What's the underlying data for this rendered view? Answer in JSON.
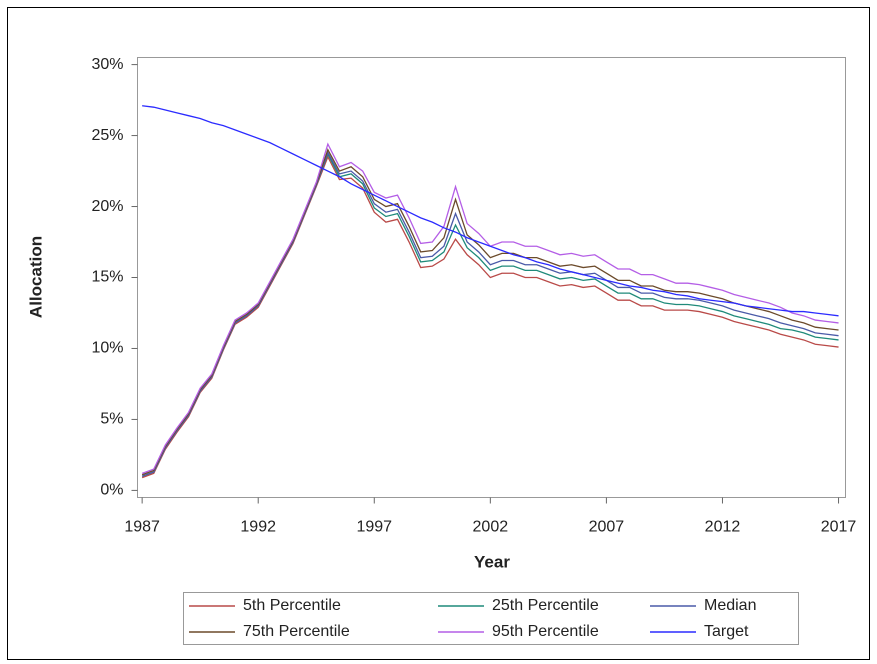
{
  "chart_data": {
    "type": "line",
    "x_label": "Year",
    "y_label": "Allocation",
    "x": [
      1987,
      1987.5,
      1988,
      1988.5,
      1989,
      1989.5,
      1990,
      1990.5,
      1991,
      1991.5,
      1992,
      1992.5,
      1993,
      1993.5,
      1994,
      1994.5,
      1995,
      1995.5,
      1996,
      1996.5,
      1997,
      1997.5,
      1998,
      1998.5,
      1999,
      1999.5,
      2000,
      2000.5,
      2001,
      2001.5,
      2002,
      2002.5,
      2003,
      2003.5,
      2004,
      2004.5,
      2005,
      2005.5,
      2006,
      2006.5,
      2007,
      2007.5,
      2008,
      2008.5,
      2009,
      2009.5,
      2010,
      2010.5,
      2011,
      2011.5,
      2012,
      2012.5,
      2013,
      2013.5,
      2014,
      2014.5,
      2015,
      2015.5,
      2016,
      2016.5,
      2017
    ],
    "series": [
      {
        "name": "5th Percentile",
        "color": "#b94a48",
        "values": [
          0.9,
          1.2,
          2.9,
          4.1,
          5.2,
          6.9,
          7.9,
          9.9,
          11.7,
          12.2,
          12.9,
          14.4,
          15.9,
          17.4,
          19.4,
          21.4,
          23.5,
          21.9,
          22.0,
          21.3,
          19.6,
          18.9,
          19.1,
          17.5,
          15.7,
          15.8,
          16.3,
          17.7,
          16.6,
          15.9,
          15.0,
          15.3,
          15.3,
          15.0,
          15.0,
          14.7,
          14.4,
          14.5,
          14.3,
          14.4,
          13.9,
          13.4,
          13.4,
          13.0,
          13.0,
          12.7,
          12.7,
          12.7,
          12.6,
          12.4,
          12.2,
          11.9,
          11.7,
          11.5,
          11.3,
          11.0,
          10.8,
          10.6,
          10.3,
          10.2,
          10.1
        ]
      },
      {
        "name": "25th Percentile",
        "color": "#1f8a7a",
        "values": [
          1.0,
          1.3,
          3.0,
          4.2,
          5.3,
          7.0,
          8.0,
          10.0,
          11.8,
          12.3,
          13.0,
          14.5,
          16.0,
          17.5,
          19.5,
          21.5,
          23.7,
          22.1,
          22.3,
          21.6,
          19.9,
          19.3,
          19.5,
          17.9,
          16.1,
          16.2,
          16.8,
          18.7,
          17.1,
          16.4,
          15.5,
          15.8,
          15.8,
          15.5,
          15.5,
          15.2,
          14.9,
          15.0,
          14.8,
          14.9,
          14.4,
          13.9,
          13.9,
          13.5,
          13.5,
          13.2,
          13.1,
          13.1,
          13.0,
          12.8,
          12.6,
          12.3,
          12.1,
          11.9,
          11.7,
          11.4,
          11.3,
          11.1,
          10.8,
          10.7,
          10.6
        ]
      },
      {
        "name": "Median",
        "color": "#4a5aa8",
        "values": [
          1.0,
          1.3,
          3.0,
          4.2,
          5.3,
          7.0,
          8.0,
          10.0,
          11.8,
          12.3,
          13.0,
          14.5,
          16.0,
          17.5,
          19.5,
          21.5,
          23.8,
          22.3,
          22.5,
          21.8,
          20.2,
          19.6,
          19.8,
          18.2,
          16.4,
          16.5,
          17.2,
          19.5,
          17.5,
          16.8,
          15.9,
          16.2,
          16.2,
          15.9,
          15.9,
          15.6,
          15.3,
          15.4,
          15.2,
          15.3,
          14.8,
          14.3,
          14.3,
          13.9,
          13.9,
          13.6,
          13.5,
          13.5,
          13.4,
          13.2,
          13.0,
          12.7,
          12.5,
          12.3,
          12.1,
          11.8,
          11.6,
          11.4,
          11.1,
          11.0,
          10.9
        ]
      },
      {
        "name": "75th Percentile",
        "color": "#6b4a2a",
        "values": [
          1.1,
          1.4,
          3.1,
          4.3,
          5.4,
          7.1,
          8.1,
          10.1,
          11.9,
          12.4,
          13.1,
          14.6,
          16.1,
          17.6,
          19.6,
          21.6,
          24.0,
          22.5,
          22.8,
          22.1,
          20.5,
          20.0,
          20.2,
          18.6,
          16.8,
          16.9,
          17.8,
          20.5,
          18.0,
          17.3,
          16.4,
          16.7,
          16.7,
          16.4,
          16.4,
          16.1,
          15.8,
          15.9,
          15.7,
          15.8,
          15.3,
          14.8,
          14.8,
          14.4,
          14.4,
          14.1,
          14.0,
          14.0,
          13.9,
          13.7,
          13.5,
          13.2,
          13.0,
          12.8,
          12.6,
          12.3,
          12.0,
          11.8,
          11.5,
          11.4,
          11.3
        ]
      },
      {
        "name": "95th Percentile",
        "color": "#b45ee6",
        "values": [
          1.2,
          1.5,
          3.2,
          4.4,
          5.5,
          7.2,
          8.2,
          10.2,
          12.0,
          12.5,
          13.2,
          14.7,
          16.2,
          17.7,
          19.7,
          21.7,
          24.4,
          22.8,
          23.1,
          22.5,
          21.0,
          20.6,
          20.8,
          19.2,
          17.4,
          17.5,
          18.6,
          21.4,
          18.8,
          18.1,
          17.2,
          17.5,
          17.5,
          17.2,
          17.2,
          16.9,
          16.6,
          16.7,
          16.5,
          16.6,
          16.1,
          15.6,
          15.6,
          15.2,
          15.2,
          14.9,
          14.6,
          14.6,
          14.5,
          14.3,
          14.1,
          13.8,
          13.6,
          13.4,
          13.2,
          12.9,
          12.5,
          12.3,
          12.0,
          11.9,
          11.8
        ]
      },
      {
        "name": "Target",
        "color": "#2b2bff",
        "values": [
          27.1,
          27.0,
          26.8,
          26.6,
          26.4,
          26.2,
          25.9,
          25.7,
          25.4,
          25.1,
          24.8,
          24.5,
          24.1,
          23.7,
          23.3,
          22.9,
          22.5,
          22.1,
          21.6,
          21.2,
          20.8,
          20.4,
          20.0,
          19.6,
          19.2,
          18.9,
          18.5,
          18.2,
          17.8,
          17.5,
          17.2,
          16.9,
          16.6,
          16.4,
          16.1,
          15.9,
          15.6,
          15.4,
          15.2,
          15.0,
          14.8,
          14.6,
          14.4,
          14.3,
          14.1,
          14.0,
          13.8,
          13.7,
          13.5,
          13.4,
          13.3,
          13.2,
          13.0,
          12.9,
          12.8,
          12.7,
          12.6,
          12.6,
          12.5,
          12.4,
          12.3
        ]
      }
    ],
    "xlim": [
      1986.8,
      2017.3
    ],
    "xticks": [
      1987,
      1992,
      1997,
      2002,
      2007,
      2012,
      2017
    ],
    "ylim": [
      -0.5,
      30.5
    ],
    "yticks": [
      {
        "value": 0,
        "label": "0%"
      },
      {
        "value": 5,
        "label": "5%"
      },
      {
        "value": 10,
        "label": "10%"
      },
      {
        "value": 15,
        "label": "15%"
      },
      {
        "value": 20,
        "label": "20%"
      },
      {
        "value": 25,
        "label": "25%"
      },
      {
        "value": 30,
        "label": "30%"
      }
    ],
    "grid": false,
    "legend": "bottom"
  }
}
